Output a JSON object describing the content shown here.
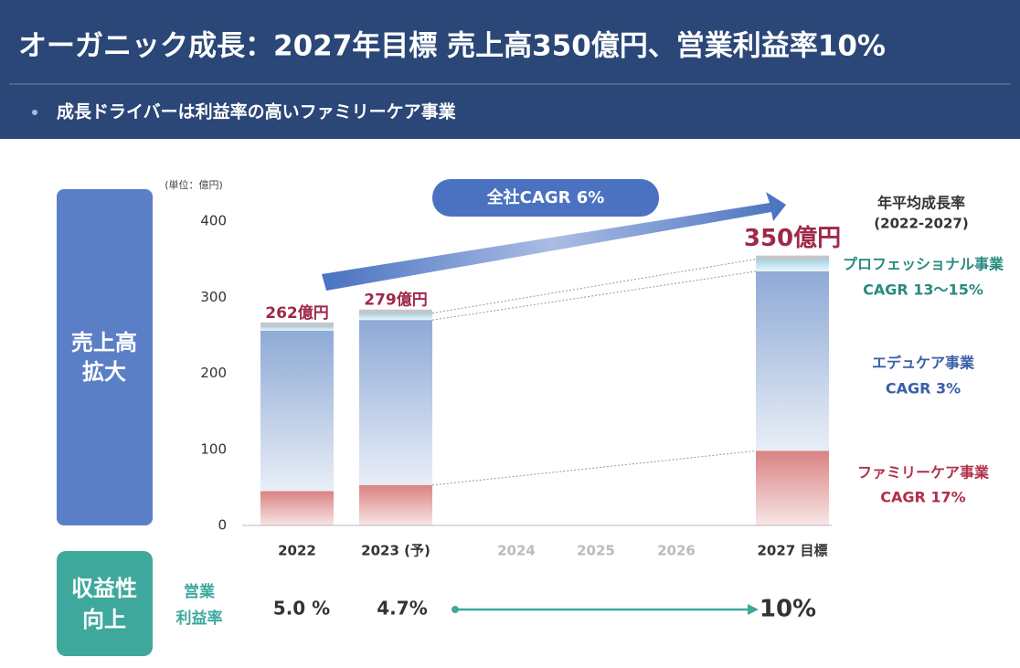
{
  "header": {
    "title": "オーガニック成長：2027年目標 売上高350億円、営業利益率10%",
    "subtitle": "成長ドライバーは利益率の高いファミリーケア事業"
  },
  "chart_data": {
    "type": "bar",
    "stacked": true,
    "unit_label": "(単位：億円)",
    "categories": [
      "2022",
      "2023 (予)",
      "2024",
      "2025",
      "2026",
      "2027 目標"
    ],
    "series": [
      {
        "name": "ファミリーケア事業",
        "note": "CAGR 17%",
        "color": "#d98282",
        "label_color": "#b0304a",
        "values": [
          45,
          53,
          null,
          null,
          null,
          98
        ]
      },
      {
        "name": "エデュケア事業",
        "note": "CAGR 3%",
        "color": "#8eaad6",
        "label_color": "#3a5fa8",
        "values": [
          211,
          217,
          null,
          null,
          null,
          236
        ]
      },
      {
        "name": "プロフェッショナル事業",
        "note": "CAGR 13〜15%",
        "color": "#9fd3e3",
        "label_color": "#2a8a80",
        "values": [
          6,
          9,
          null,
          null,
          null,
          16
        ]
      }
    ],
    "totals": {
      "values": [
        262,
        279,
        null,
        null,
        null,
        350
      ],
      "value_labels": [
        "262億円",
        "279億円",
        null,
        null,
        null,
        "350億円"
      ]
    },
    "ylim": [
      0,
      400
    ],
    "yticks": [
      0,
      100,
      200,
      300,
      400
    ],
    "grid": false,
    "cagr_label": "全社CAGR 6%",
    "cagr_note": [
      "年平均成長率",
      "(2022-2027)"
    ]
  },
  "left_labels": [
    [
      "売上高",
      "拡大"
    ],
    [
      "収益性",
      "向上"
    ]
  ],
  "operating_margin": {
    "label": [
      "営業",
      "利益率"
    ],
    "values": [
      5.0,
      4.7,
      null,
      null,
      null,
      10
    ],
    "value_labels": [
      "5.0 %",
      "4.7%",
      null,
      null,
      null,
      "10%"
    ]
  }
}
